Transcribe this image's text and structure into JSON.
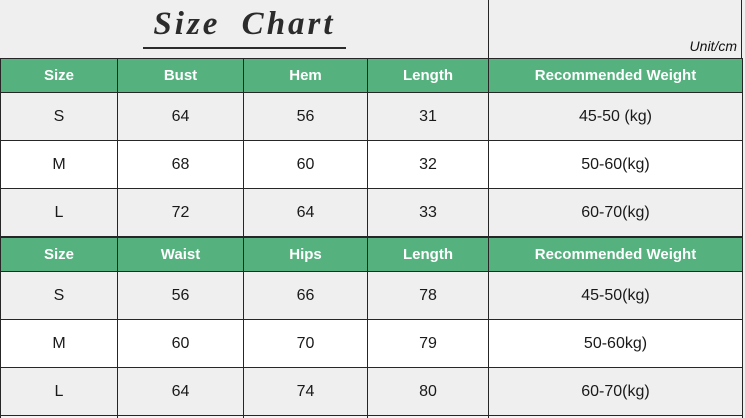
{
  "page": {
    "title": "Size Chart",
    "unit_label": "Unit/cm"
  },
  "colors": {
    "header_green": "#55b17e",
    "row_alt_gray": "#efefef",
    "row_white": "#ffffff",
    "border_dark": "#262626",
    "header_text": "#ffffff",
    "body_text": "#191919"
  },
  "tables": [
    {
      "headers": [
        "Size",
        "Bust",
        "Hem",
        "Length",
        "Recommended Weight"
      ],
      "rows": [
        [
          "S",
          "64",
          "56",
          "31",
          "45-50 (kg)"
        ],
        [
          "M",
          "68",
          "60",
          "32",
          "50-60(kg)"
        ],
        [
          "L",
          "72",
          "64",
          "33",
          "60-70(kg)"
        ]
      ]
    },
    {
      "headers": [
        "Size",
        "Waist",
        "Hips",
        "Length",
        "Recommended Weight"
      ],
      "rows": [
        [
          "S",
          "56",
          "66",
          "78",
          "45-50(kg)"
        ],
        [
          "M",
          "60",
          "70",
          "79",
          "50-60kg)"
        ],
        [
          "L",
          "64",
          "74",
          "80",
          "60-70(kg)"
        ]
      ]
    }
  ]
}
